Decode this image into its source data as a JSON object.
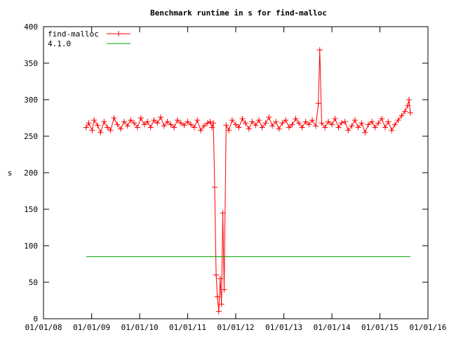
{
  "chart_data": {
    "type": "line",
    "title": "Benchmark runtime in s for find-malloc",
    "xlabel": "",
    "ylabel": "s",
    "xlim": [
      "2008-01-01",
      "2016-01-01"
    ],
    "ylim": [
      0,
      400
    ],
    "grid": false,
    "legend_position": "top-left",
    "x_ticks": [
      "01/01/08",
      "01/01/09",
      "01/01/10",
      "01/01/11",
      "01/01/12",
      "01/01/13",
      "01/01/14",
      "01/01/15",
      "01/01/16"
    ],
    "y_ticks": [
      0,
      50,
      100,
      150,
      200,
      250,
      300,
      350,
      400
    ],
    "series": [
      {
        "name": "find-malloc",
        "color": "#ff0000",
        "marker": "plus",
        "x": [
          "2008-11-20",
          "2008-12-10",
          "2009-01-05",
          "2009-01-20",
          "2009-02-15",
          "2009-03-10",
          "2009-04-05",
          "2009-05-01",
          "2009-05-25",
          "2009-06-20",
          "2009-07-15",
          "2009-08-10",
          "2009-09-05",
          "2009-10-01",
          "2009-10-25",
          "2009-11-20",
          "2009-12-15",
          "2010-01-10",
          "2010-02-05",
          "2010-03-01",
          "2010-03-25",
          "2010-04-20",
          "2010-05-15",
          "2010-06-10",
          "2010-07-05",
          "2010-07-30",
          "2010-08-25",
          "2010-09-20",
          "2010-10-15",
          "2010-11-10",
          "2010-12-05",
          "2011-01-01",
          "2011-01-25",
          "2011-02-20",
          "2011-03-15",
          "2011-04-10",
          "2011-05-05",
          "2011-06-01",
          "2011-06-20",
          "2011-07-05",
          "2011-07-15",
          "2011-07-25",
          "2011-08-05",
          "2011-08-15",
          "2011-08-25",
          "2011-09-05",
          "2011-09-15",
          "2011-09-25",
          "2011-10-05",
          "2011-10-20",
          "2011-11-10",
          "2011-12-05",
          "2012-01-01",
          "2012-01-25",
          "2012-02-20",
          "2012-03-15",
          "2012-04-10",
          "2012-05-05",
          "2012-06-01",
          "2012-06-25",
          "2012-07-20",
          "2012-08-15",
          "2012-09-10",
          "2012-10-05",
          "2012-11-01",
          "2012-11-25",
          "2012-12-20",
          "2013-01-15",
          "2013-02-10",
          "2013-03-05",
          "2013-04-01",
          "2013-04-25",
          "2013-05-20",
          "2013-06-15",
          "2013-07-10",
          "2013-08-05",
          "2013-09-01",
          "2013-09-20",
          "2013-10-01",
          "2013-10-15",
          "2013-11-10",
          "2013-12-05",
          "2014-01-01",
          "2014-01-25",
          "2014-02-20",
          "2014-03-15",
          "2014-04-10",
          "2014-05-05",
          "2014-06-01",
          "2014-06-25",
          "2014-07-20",
          "2014-08-15",
          "2014-09-10",
          "2014-10-05",
          "2014-11-01",
          "2014-11-25",
          "2014-12-20",
          "2015-01-15",
          "2015-02-10",
          "2015-03-05",
          "2015-04-01",
          "2015-04-25",
          "2015-05-20",
          "2015-06-15",
          "2015-07-10",
          "2015-08-01",
          "2015-08-10",
          "2015-08-20"
        ],
        "y": [
          262,
          268,
          258,
          272,
          265,
          255,
          270,
          262,
          258,
          275,
          266,
          260,
          270,
          264,
          272,
          268,
          262,
          275,
          266,
          270,
          262,
          272,
          268,
          276,
          264,
          270,
          266,
          262,
          272,
          268,
          265,
          270,
          266,
          262,
          272,
          258,
          264,
          268,
          270,
          262,
          268,
          180,
          60,
          30,
          10,
          55,
          20,
          145,
          40,
          265,
          258,
          272,
          266,
          262,
          274,
          268,
          260,
          270,
          265,
          272,
          262,
          268,
          276,
          264,
          270,
          260,
          268,
          272,
          262,
          266,
          274,
          268,
          262,
          270,
          266,
          272,
          264,
          295,
          368,
          268,
          262,
          270,
          266,
          274,
          262,
          268,
          270,
          258,
          264,
          272,
          262,
          268,
          255,
          266,
          270,
          262,
          268,
          274,
          262,
          270,
          258,
          266,
          272,
          278,
          284,
          292,
          300,
          282
        ]
      },
      {
        "name": "4.1.0",
        "color": "#00a000",
        "marker": "none",
        "x": [
          "2008-11-20",
          "2015-08-20"
        ],
        "y": [
          85,
          85
        ]
      }
    ]
  }
}
